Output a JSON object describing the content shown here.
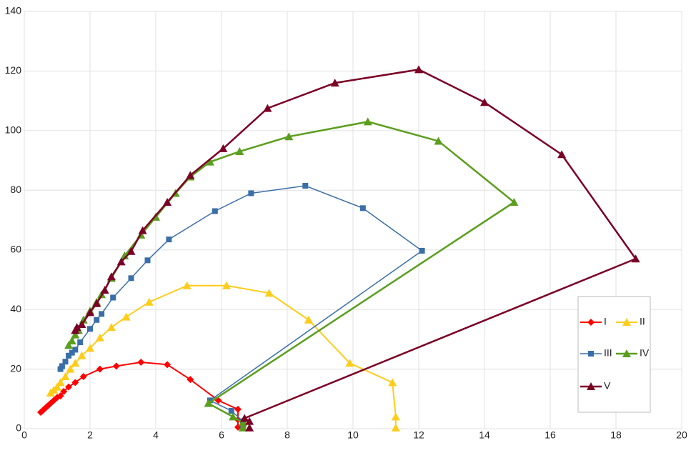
{
  "chart_data": {
    "type": "line",
    "xlim": [
      0,
      20
    ],
    "xticks": [
      0,
      2,
      4,
      6,
      8,
      10,
      12,
      14,
      16,
      18,
      20
    ],
    "ylim": [
      0,
      140
    ],
    "yticks": [
      0,
      20,
      40,
      60,
      80,
      100,
      120,
      140
    ],
    "grid": true,
    "legend": "right",
    "series": [
      {
        "name": "I",
        "color": "#ff0000",
        "marker": "diamond",
        "x": [
          0.5,
          0.55,
          0.6,
          0.65,
          0.7,
          0.75,
          0.8,
          0.9,
          1.0,
          1.1,
          1.2,
          1.35,
          1.55,
          1.8,
          2.3,
          2.8,
          3.55,
          4.35,
          5.05,
          5.9,
          6.5,
          6.5,
          6.5
        ],
        "values": [
          5.5,
          6,
          6.5,
          7,
          7.5,
          8,
          8.5,
          9.5,
          10.5,
          11,
          12.5,
          14,
          15.5,
          17.5,
          20,
          21,
          22.3,
          21.5,
          16.5,
          9.5,
          6.5,
          3,
          0.5
        ]
      },
      {
        "name": "II",
        "color": "#ffcc1a",
        "marker": "triangle",
        "x": [
          0.8,
          0.9,
          1.0,
          1.1,
          1.25,
          1.4,
          1.55,
          1.75,
          2.0,
          2.3,
          2.65,
          3.1,
          3.8,
          4.95,
          6.15,
          7.45,
          8.65,
          9.9,
          11.2,
          11.3,
          11.3
        ],
        "values": [
          12,
          13,
          14,
          15.5,
          17.5,
          20,
          22,
          24.5,
          27,
          30.5,
          34,
          37.5,
          42.5,
          48,
          48,
          45.5,
          36.5,
          22,
          15.5,
          4,
          0.3
        ]
      },
      {
        "name": "III",
        "color": "#3a6ea8",
        "marker": "square",
        "x": [
          1.1,
          1.15,
          1.25,
          1.35,
          1.45,
          1.55,
          1.7,
          2.0,
          2.2,
          2.35,
          2.7,
          3.25,
          3.75,
          4.4,
          5.8,
          6.9,
          8.55,
          10.3,
          12.1,
          5.65,
          6.3,
          6.65,
          6.65
        ],
        "values": [
          20,
          21,
          22.5,
          24.5,
          25.5,
          26.5,
          29,
          33.5,
          36.5,
          38.5,
          44,
          50.5,
          56.5,
          63.5,
          73,
          79,
          81.5,
          74,
          59.7,
          9.5,
          6,
          2.5,
          0.5
        ]
      },
      {
        "name": "IV",
        "color": "#5a9e1e",
        "marker": "triangle",
        "x": [
          1.35,
          1.45,
          1.55,
          1.65,
          1.8,
          2.0,
          2.2,
          2.35,
          2.65,
          3.05,
          3.55,
          4.0,
          4.6,
          5.05,
          5.65,
          6.55,
          8.05,
          10.45,
          12.6,
          14.9,
          5.6,
          6.35,
          6.65,
          6.65
        ],
        "values": [
          28,
          29.5,
          31.5,
          33,
          36.5,
          39.5,
          42.5,
          45,
          50.5,
          58,
          65,
          71,
          79,
          84.5,
          89.5,
          93,
          98,
          103,
          96.5,
          76,
          8.5,
          4,
          2,
          0.3
        ]
      },
      {
        "name": "V",
        "color": "#7a0026",
        "marker": "triangle",
        "x": [
          1.55,
          1.6,
          1.75,
          2.0,
          2.2,
          2.45,
          2.65,
          2.95,
          3.25,
          3.6,
          4.35,
          5.05,
          6.05,
          7.4,
          9.45,
          12.0,
          14.0,
          16.35,
          18.6,
          6.7,
          6.85,
          6.85
        ],
        "values": [
          33,
          34,
          35,
          39,
          42,
          46.5,
          51,
          56,
          59.5,
          66.5,
          76,
          85,
          94,
          107.5,
          116,
          120.5,
          109.5,
          92,
          57,
          3.5,
          2.5,
          0.3
        ]
      }
    ]
  }
}
